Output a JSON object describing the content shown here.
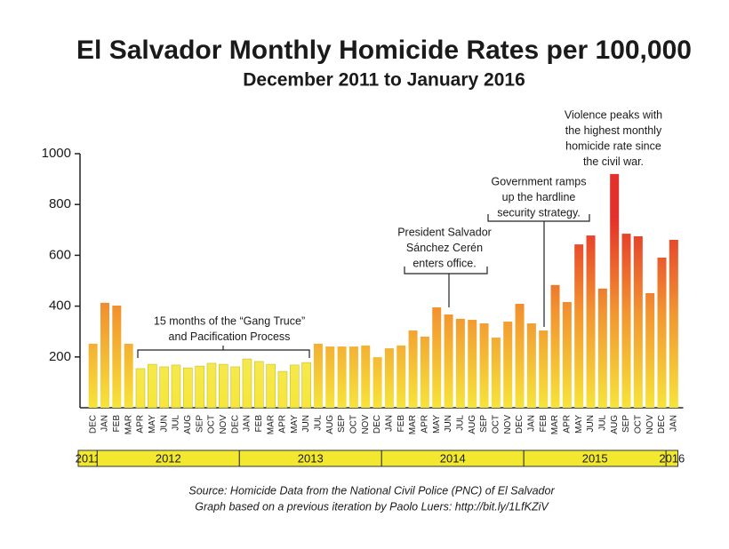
{
  "chart_data": {
    "type": "bar",
    "title": "El Salvador Monthly Homicide Rates per 100,000",
    "subtitle": "December 2011 to January 2016",
    "groups": [
      {
        "label": "2011",
        "categories": [
          "DEC"
        ]
      },
      {
        "label": "2012",
        "categories": [
          "JAN",
          "FEB",
          "MAR",
          "APR",
          "MAY",
          "JUN",
          "JUL",
          "AUG",
          "SEP",
          "OCT",
          "NOV",
          "DEC"
        ]
      },
      {
        "label": "2013",
        "categories": [
          "JAN",
          "FEB",
          "MAR",
          "APR",
          "MAY",
          "JUN",
          "JUL",
          "AUG",
          "SEP",
          "OCT",
          "NOV",
          "DEC"
        ]
      },
      {
        "label": "2014",
        "categories": [
          "JAN",
          "FEB",
          "MAR",
          "APR",
          "MAY",
          "JUN",
          "JUL",
          "AUG",
          "SEP",
          "OCT",
          "NOV",
          "DEC"
        ]
      },
      {
        "label": "2015",
        "categories": [
          "JAN",
          "FEB",
          "MAR",
          "APR",
          "MAY",
          "JUN",
          "JUL",
          "AUG",
          "SEP",
          "OCT",
          "NOV",
          "DEC"
        ]
      },
      {
        "label": "2016",
        "categories": [
          "JAN"
        ]
      }
    ],
    "series": [
      {
        "colors": [
          "#e4302a",
          "#f29530",
          "#f7e43a"
        ],
        "values": [
          252,
          413,
          402,
          252,
          null,
          null,
          null,
          null,
          null,
          null,
          null,
          null,
          null,
          null,
          null,
          null,
          null,
          null,
          null,
          252,
          241,
          241,
          241,
          245,
          199,
          234,
          245,
          304,
          280,
          395,
          367,
          350,
          346,
          332,
          276,
          339,
          409,
          332,
          304,
          483,
          416,
          643,
          678,
          469,
          920,
          685,
          675,
          451,
          591,
          661
        ]
      },
      {
        "colors": [
          "#f3ec60",
          "#f3ec60",
          "#f6e63c"
        ],
        "values": [
          null,
          null,
          null,
          null,
          154,
          171,
          161,
          168,
          157,
          164,
          175,
          171,
          161,
          192,
          182,
          171,
          143,
          168,
          178,
          null,
          null,
          null,
          null,
          null,
          null,
          null,
          null,
          null,
          null,
          null,
          null,
          null,
          null,
          null,
          null,
          null,
          null,
          null,
          null,
          null,
          null,
          null,
          null,
          null,
          null,
          null,
          null,
          null,
          null,
          null
        ]
      }
    ],
    "ylim": [
      0,
      1000
    ],
    "yticks": [
      200,
      400,
      600,
      800,
      1000
    ],
    "year_band_color": "#f2e830",
    "annotations": [
      {
        "lines": [
          "15 months of the “Gang Truce”",
          "and Pacification Process"
        ]
      },
      {
        "lines": [
          "President Salvador",
          "Sánchez Cerén",
          "enters office."
        ]
      },
      {
        "lines": [
          "Government ramps",
          "up the hardline",
          "security strategy."
        ]
      },
      {
        "lines": [
          "Violence peaks with",
          "the highest monthly",
          "homicide rate since",
          "the civil war."
        ]
      }
    ],
    "source": [
      "Source: Homicide Data from the National Civil Police (PNC) of El Salvador",
      "Graph based on a previous iteration by Paolo Luers: http://bit.ly/1LfKZiV"
    ]
  }
}
